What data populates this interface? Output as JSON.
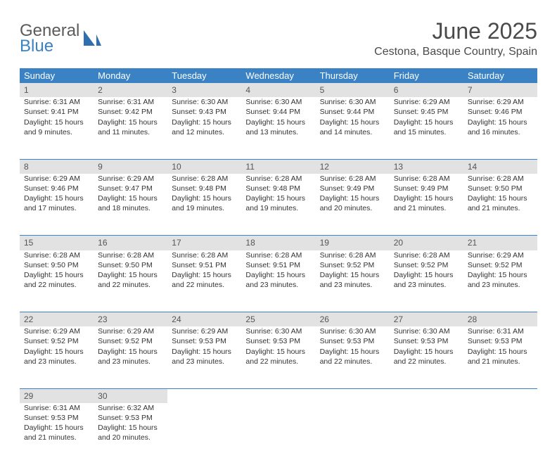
{
  "logo": {
    "text1": "General",
    "text2": "Blue"
  },
  "title": "June 2025",
  "location": "Cestona, Basque Country, Spain",
  "colors": {
    "header_bg": "#3a82c4",
    "header_text": "#ffffff",
    "daynum_bg": "#e2e2e2",
    "border": "#3a82c4",
    "text": "#333333"
  },
  "weekdays": [
    "Sunday",
    "Monday",
    "Tuesday",
    "Wednesday",
    "Thursday",
    "Friday",
    "Saturday"
  ],
  "weeks": [
    [
      {
        "n": "1",
        "sr": "6:31 AM",
        "ss": "9:41 PM",
        "dl": "15 hours and 9 minutes."
      },
      {
        "n": "2",
        "sr": "6:31 AM",
        "ss": "9:42 PM",
        "dl": "15 hours and 11 minutes."
      },
      {
        "n": "3",
        "sr": "6:30 AM",
        "ss": "9:43 PM",
        "dl": "15 hours and 12 minutes."
      },
      {
        "n": "4",
        "sr": "6:30 AM",
        "ss": "9:44 PM",
        "dl": "15 hours and 13 minutes."
      },
      {
        "n": "5",
        "sr": "6:30 AM",
        "ss": "9:44 PM",
        "dl": "15 hours and 14 minutes."
      },
      {
        "n": "6",
        "sr": "6:29 AM",
        "ss": "9:45 PM",
        "dl": "15 hours and 15 minutes."
      },
      {
        "n": "7",
        "sr": "6:29 AM",
        "ss": "9:46 PM",
        "dl": "15 hours and 16 minutes."
      }
    ],
    [
      {
        "n": "8",
        "sr": "6:29 AM",
        "ss": "9:46 PM",
        "dl": "15 hours and 17 minutes."
      },
      {
        "n": "9",
        "sr": "6:29 AM",
        "ss": "9:47 PM",
        "dl": "15 hours and 18 minutes."
      },
      {
        "n": "10",
        "sr": "6:28 AM",
        "ss": "9:48 PM",
        "dl": "15 hours and 19 minutes."
      },
      {
        "n": "11",
        "sr": "6:28 AM",
        "ss": "9:48 PM",
        "dl": "15 hours and 19 minutes."
      },
      {
        "n": "12",
        "sr": "6:28 AM",
        "ss": "9:49 PM",
        "dl": "15 hours and 20 minutes."
      },
      {
        "n": "13",
        "sr": "6:28 AM",
        "ss": "9:49 PM",
        "dl": "15 hours and 21 minutes."
      },
      {
        "n": "14",
        "sr": "6:28 AM",
        "ss": "9:50 PM",
        "dl": "15 hours and 21 minutes."
      }
    ],
    [
      {
        "n": "15",
        "sr": "6:28 AM",
        "ss": "9:50 PM",
        "dl": "15 hours and 22 minutes."
      },
      {
        "n": "16",
        "sr": "6:28 AM",
        "ss": "9:50 PM",
        "dl": "15 hours and 22 minutes."
      },
      {
        "n": "17",
        "sr": "6:28 AM",
        "ss": "9:51 PM",
        "dl": "15 hours and 22 minutes."
      },
      {
        "n": "18",
        "sr": "6:28 AM",
        "ss": "9:51 PM",
        "dl": "15 hours and 23 minutes."
      },
      {
        "n": "19",
        "sr": "6:28 AM",
        "ss": "9:52 PM",
        "dl": "15 hours and 23 minutes."
      },
      {
        "n": "20",
        "sr": "6:28 AM",
        "ss": "9:52 PM",
        "dl": "15 hours and 23 minutes."
      },
      {
        "n": "21",
        "sr": "6:29 AM",
        "ss": "9:52 PM",
        "dl": "15 hours and 23 minutes."
      }
    ],
    [
      {
        "n": "22",
        "sr": "6:29 AM",
        "ss": "9:52 PM",
        "dl": "15 hours and 23 minutes."
      },
      {
        "n": "23",
        "sr": "6:29 AM",
        "ss": "9:52 PM",
        "dl": "15 hours and 23 minutes."
      },
      {
        "n": "24",
        "sr": "6:29 AM",
        "ss": "9:53 PM",
        "dl": "15 hours and 23 minutes."
      },
      {
        "n": "25",
        "sr": "6:30 AM",
        "ss": "9:53 PM",
        "dl": "15 hours and 22 minutes."
      },
      {
        "n": "26",
        "sr": "6:30 AM",
        "ss": "9:53 PM",
        "dl": "15 hours and 22 minutes."
      },
      {
        "n": "27",
        "sr": "6:30 AM",
        "ss": "9:53 PM",
        "dl": "15 hours and 22 minutes."
      },
      {
        "n": "28",
        "sr": "6:31 AM",
        "ss": "9:53 PM",
        "dl": "15 hours and 21 minutes."
      }
    ],
    [
      {
        "n": "29",
        "sr": "6:31 AM",
        "ss": "9:53 PM",
        "dl": "15 hours and 21 minutes."
      },
      {
        "n": "30",
        "sr": "6:32 AM",
        "ss": "9:53 PM",
        "dl": "15 hours and 20 minutes."
      },
      null,
      null,
      null,
      null,
      null
    ]
  ],
  "labels": {
    "sunrise": "Sunrise: ",
    "sunset": "Sunset: ",
    "daylight": "Daylight: "
  }
}
